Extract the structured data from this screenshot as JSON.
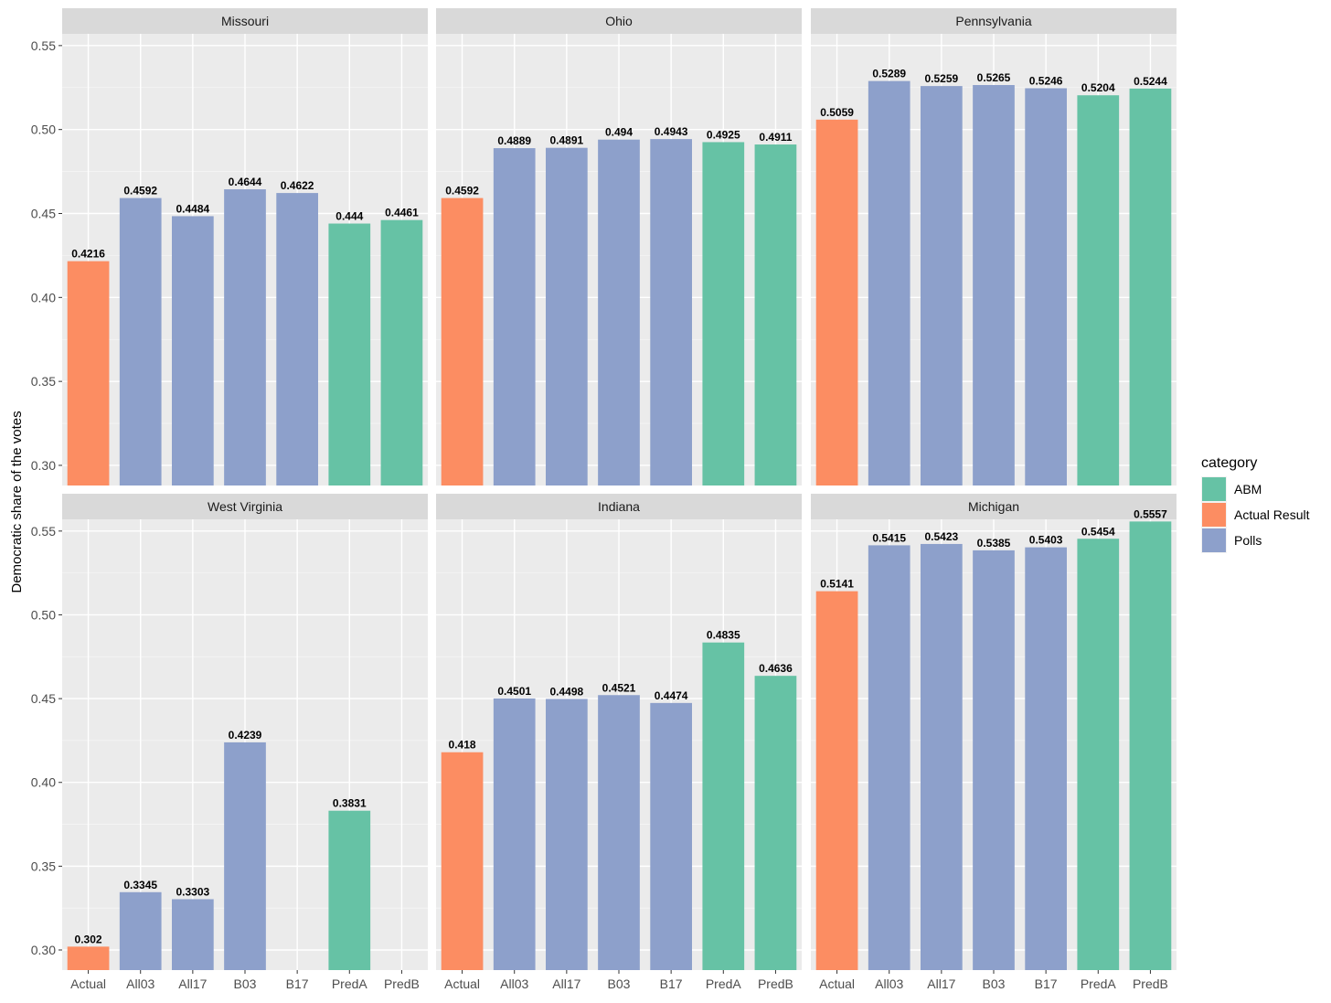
{
  "chart_data": {
    "type": "bar",
    "facet_layout": "2x3",
    "ylabel": "Democratic share of the votes",
    "xlabel": "",
    "ylim": [
      0.288,
      0.557
    ],
    "y_ticks": [
      0.3,
      0.35,
      0.4,
      0.45,
      0.5,
      0.55
    ],
    "y_tick_labels": [
      "0.30",
      "0.35",
      "0.40",
      "0.45",
      "0.50",
      "0.55"
    ],
    "categories": [
      "Actual",
      "All03",
      "All17",
      "B03",
      "B17",
      "PredA",
      "PredB"
    ],
    "bar_category": [
      "Actual Result",
      "Polls",
      "Polls",
      "Polls",
      "Polls",
      "ABM",
      "ABM"
    ],
    "grid": true,
    "legend": {
      "title": "category",
      "position": "right",
      "entries": [
        {
          "label": "ABM",
          "color": "#66c2a5"
        },
        {
          "label": "Actual Result",
          "color": "#fc8d62"
        },
        {
          "label": "Polls",
          "color": "#8da0cb"
        }
      ]
    },
    "panels": [
      {
        "title": "Missouri",
        "values": [
          0.4216,
          0.4592,
          0.4484,
          0.4644,
          0.4622,
          0.444,
          0.4461
        ],
        "labels": [
          "0.4216",
          "0.4592",
          "0.4484",
          "0.4644",
          "0.4622",
          "0.444",
          "0.4461"
        ]
      },
      {
        "title": "Ohio",
        "values": [
          0.4592,
          0.4889,
          0.4891,
          0.494,
          0.4943,
          0.4925,
          0.4911
        ],
        "labels": [
          "0.4592",
          "0.4889",
          "0.4891",
          "0.494",
          "0.4943",
          "0.4925",
          "0.4911"
        ]
      },
      {
        "title": "Pennsylvania",
        "values": [
          0.5059,
          0.5289,
          0.5259,
          0.5265,
          0.5246,
          0.5204,
          0.5244
        ],
        "labels": [
          "0.5059",
          "0.5289",
          "0.5259",
          "0.5265",
          "0.5246",
          "0.5204",
          "0.5244"
        ]
      },
      {
        "title": "West Virginia",
        "values": [
          0.302,
          0.3345,
          0.3303,
          0.4239,
          null,
          0.3831,
          null
        ],
        "labels": [
          "0.302",
          "0.3345",
          "0.3303",
          "0.4239",
          null,
          "0.3831",
          null
        ]
      },
      {
        "title": "Indiana",
        "values": [
          0.418,
          0.4501,
          0.4498,
          0.4521,
          0.4474,
          0.4835,
          0.4636
        ],
        "labels": [
          "0.418",
          "0.4501",
          "0.4498",
          "0.4521",
          "0.4474",
          "0.4835",
          "0.4636"
        ]
      },
      {
        "title": "Michigan",
        "values": [
          0.5141,
          0.5415,
          0.5423,
          0.5385,
          0.5403,
          0.5454,
          0.5557
        ],
        "labels": [
          "0.5141",
          "0.5415",
          "0.5423",
          "0.5385",
          "0.5403",
          "0.5454",
          "0.5557"
        ]
      }
    ]
  }
}
